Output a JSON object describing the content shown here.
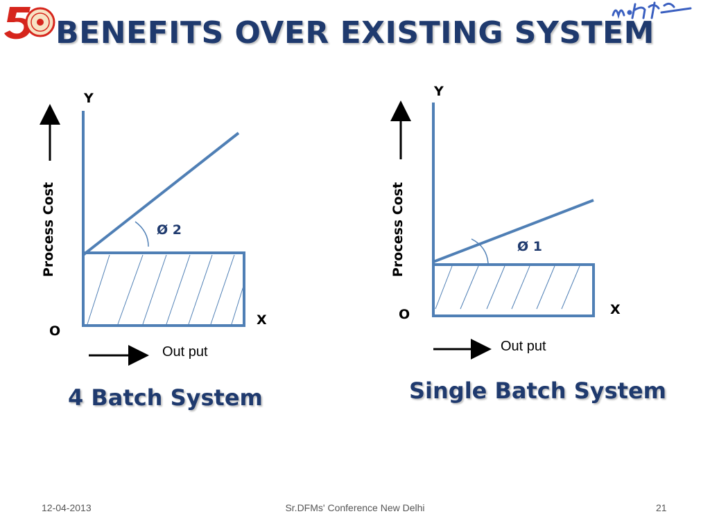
{
  "slide": {
    "title": "BENEFITS OVER EXISTING SYSTEM",
    "accent_color": "#4f7fb5",
    "title_color": "#1f3a6e"
  },
  "left": {
    "y_letter": "Y",
    "x_letter": "X",
    "origin": "O",
    "y_axis_label": "Process  Cost",
    "x_axis_label": "Out put",
    "angle_label": "Ø 2",
    "caption": "4 Batch System"
  },
  "right": {
    "y_letter": "Y",
    "x_letter": "X",
    "origin": "O",
    "y_axis_label": "Process  Cost",
    "x_axis_label": "Out put",
    "angle_label": "Ø 1",
    "caption": "Single  Batch System"
  },
  "footer": {
    "date": "12-04-2013",
    "event": "Sr.DFMs' Conference New Delhi",
    "page": "21"
  },
  "logos": {
    "left": "golden-jubilee-emblem",
    "right": "handwritten-signature"
  }
}
